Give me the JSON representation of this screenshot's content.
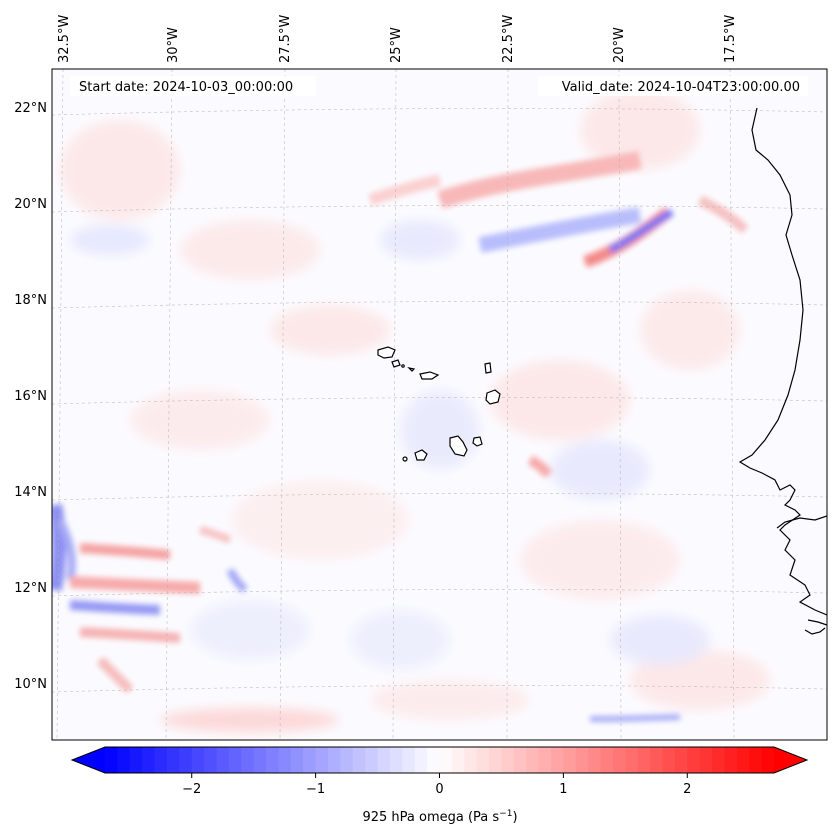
{
  "map": {
    "start_date": "Start date: 2024-10-03_00:00:00",
    "valid_date": "Valid_date: 2024-10-04T23:00:00.00",
    "top_ticks": [
      "32.5°W",
      "30°W",
      "27.5°W",
      "25°W",
      "22.5°W",
      "20°W",
      "17.5°W"
    ],
    "left_ticks": [
      "22°N",
      "20°N",
      "18°N",
      "16°N",
      "14°N",
      "12°N",
      "10°N"
    ]
  },
  "colorbar": {
    "label_main": "925 hPa omega (Pa s",
    "label_sup": "−1",
    "label_end": ")",
    "ticks": [
      "−2",
      "−1",
      "0",
      "1",
      "2"
    ],
    "range": [
      -2.7,
      2.7
    ],
    "colormap": "bwr",
    "colors": {
      "low": "#0000ff",
      "mid": "#ffffff",
      "high": "#ff0000"
    }
  }
}
